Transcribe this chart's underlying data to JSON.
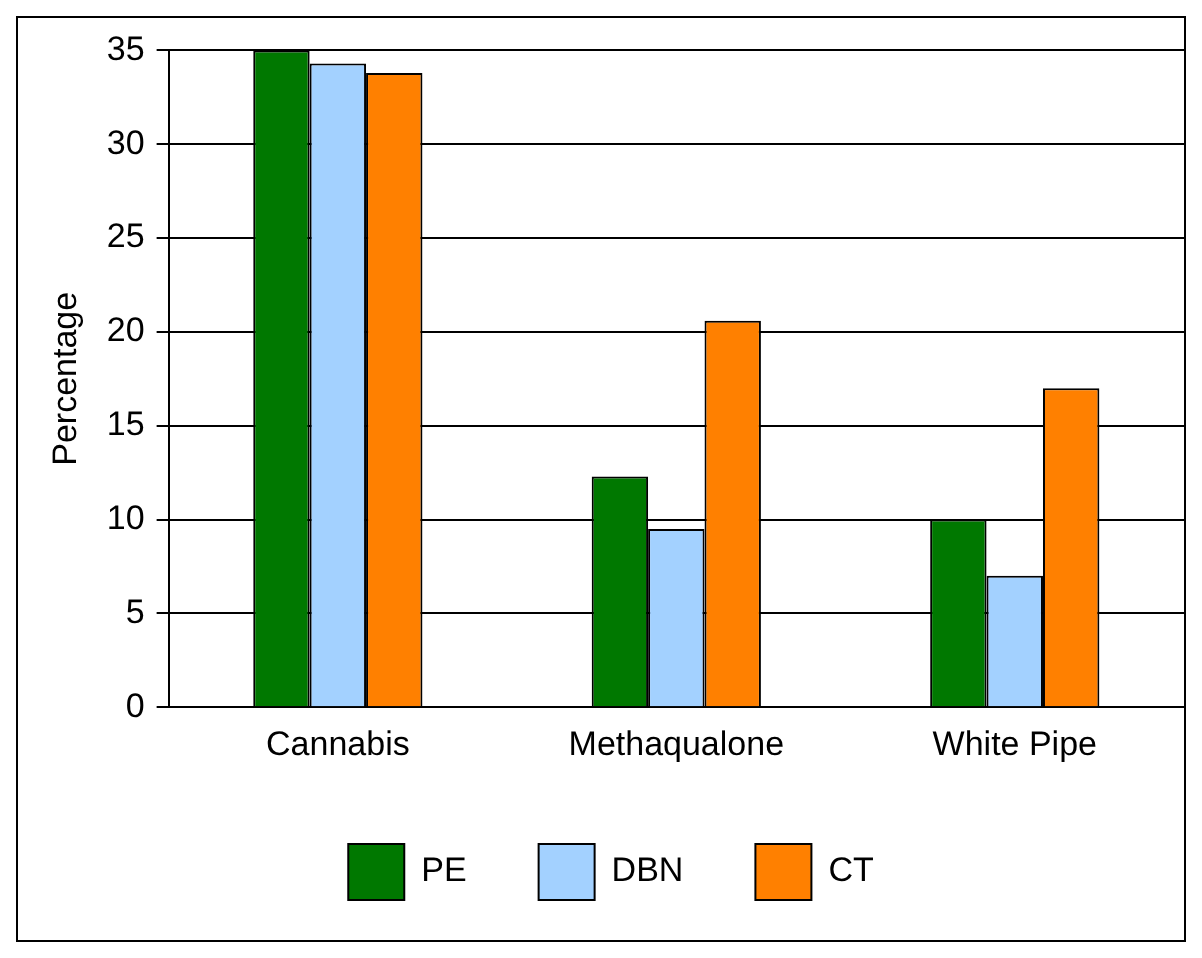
{
  "chart_data": {
    "type": "bar",
    "ylabel": "Percentage",
    "categories": [
      "Cannabis",
      "Methaqualone",
      "White Pipe"
    ],
    "series": [
      {
        "name": "PE",
        "color": "#007800",
        "values": [
          35,
          12.3,
          10
        ]
      },
      {
        "name": "DBN",
        "color": "#a3d1ff",
        "values": [
          34.3,
          9.5,
          7
        ]
      },
      {
        "name": "CT",
        "color": "#ff8000",
        "values": [
          33.8,
          20.6,
          17
        ]
      }
    ],
    "ylim": [
      0,
      35
    ],
    "yticks": [
      0,
      5,
      10,
      15,
      20,
      25,
      30,
      35
    ],
    "grid": "y",
    "legend": "bottom"
  }
}
